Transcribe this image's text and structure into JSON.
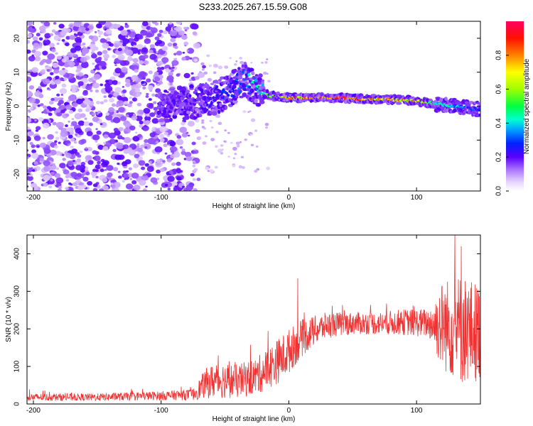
{
  "title": "S233.2025.267.15.59.G08",
  "chart_data": [
    {
      "type": "heatmap",
      "name": "spectrogram",
      "xlabel": "Height of straight line (km)",
      "ylabel": "Frequency (Hz)",
      "xlim": [
        -205,
        150
      ],
      "ylim": [
        -25,
        25
      ],
      "xticks": [
        -200,
        -100,
        0,
        100
      ],
      "yticks": [
        -20,
        -10,
        0,
        10,
        20
      ],
      "colorbar": {
        "label": "Normalized spectral amplitude",
        "ticks": [
          0.0,
          0.2,
          0.4,
          0.6,
          0.8
        ],
        "range": [
          0,
          1
        ]
      },
      "ridge": {
        "x": [
          -100,
          -80,
          -60,
          -45,
          -35,
          -25,
          -15,
          0,
          20,
          40,
          60,
          80,
          100,
          120,
          140,
          150
        ],
        "freq": [
          0,
          1,
          2,
          5,
          8,
          5,
          3,
          2.5,
          2.5,
          2.5,
          2,
          2,
          1.5,
          0.5,
          -0.5,
          -1
        ],
        "amplitude": [
          0.15,
          0.2,
          0.25,
          0.3,
          0.35,
          0.45,
          0.6,
          0.75,
          0.9,
          0.95,
          0.85,
          0.8,
          0.75,
          0.45,
          0.35,
          0.3
        ]
      },
      "noise_region_x": [
        -205,
        -75
      ]
    },
    {
      "type": "line",
      "name": "snr",
      "xlabel": "Height of straight line (km)",
      "ylabel": "SNR (10 * v/v)",
      "xlim": [
        -205,
        150
      ],
      "ylim": [
        0,
        450
      ],
      "xticks": [
        -200,
        -100,
        0,
        100
      ],
      "yticks": [
        0,
        100,
        200,
        300,
        400
      ],
      "color": "#ef3333",
      "envelope": {
        "x": [
          -205,
          -150,
          -100,
          -75,
          -65,
          -55,
          -40,
          -25,
          -10,
          0,
          10,
          20,
          30,
          50,
          70,
          90,
          110,
          120,
          135,
          150
        ],
        "mean": [
          18,
          18,
          22,
          25,
          55,
          65,
          60,
          75,
          110,
          140,
          175,
          195,
          210,
          215,
          215,
          218,
          215,
          210,
          200,
          190
        ],
        "spread": [
          10,
          10,
          12,
          15,
          40,
          50,
          45,
          50,
          60,
          60,
          50,
          40,
          35,
          30,
          30,
          35,
          40,
          120,
          150,
          130
        ]
      },
      "spikes": [
        {
          "x": 7,
          "y": 335
        },
        {
          "x": 130,
          "y": 450
        },
        {
          "x": 135,
          "y": 420
        }
      ]
    }
  ]
}
